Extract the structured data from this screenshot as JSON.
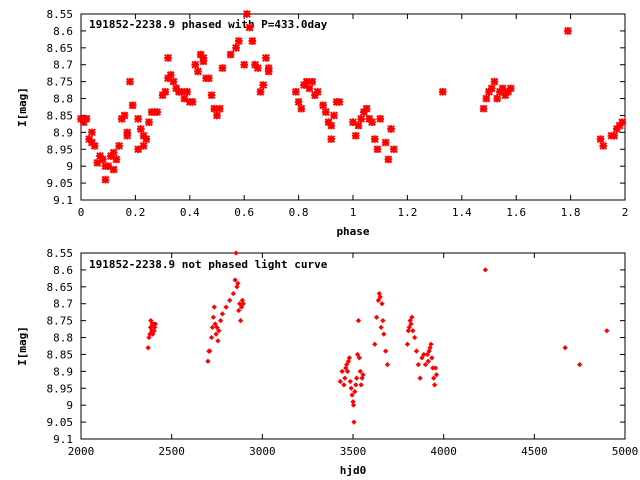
{
  "charts": [
    {
      "id": "phased",
      "title": "191852-2238.9 phased with P=433.0day",
      "xlabel": "phase",
      "ylabel": "I[mag]",
      "marker_color": "#ff0000",
      "marker_style": "cross",
      "xlim": [
        0,
        2
      ],
      "ylim": [
        8.55,
        9.1
      ],
      "y_inverted": true,
      "x_ticks": [
        0,
        0.2,
        0.4,
        0.6,
        0.8,
        1,
        1.2,
        1.4,
        1.6,
        1.8,
        2
      ],
      "x_tick_labels": [
        "0",
        "0.2",
        "0.4",
        "0.6",
        "0.8",
        "1",
        "1.2",
        "1.4",
        "1.6",
        "1.8",
        "2"
      ],
      "y_ticks": [
        8.55,
        8.6,
        8.65,
        8.7,
        8.75,
        8.8,
        8.85,
        8.9,
        8.95,
        9,
        9.05,
        9.1
      ],
      "y_tick_labels": [
        "8.55",
        "8.6",
        "8.65",
        "8.7",
        "8.75",
        "8.8",
        "8.85",
        "8.9",
        "8.95",
        "9",
        "9.05",
        "9.1"
      ]
    },
    {
      "id": "unphased",
      "title": "191852-2238.9 not phased light curve",
      "xlabel": "hjd0",
      "ylabel": "I[mag]",
      "marker_color": "#ff0000",
      "marker_style": "diamond",
      "xlim": [
        2000,
        5000
      ],
      "ylim": [
        8.55,
        9.1
      ],
      "y_inverted": true,
      "x_ticks": [
        2000,
        2500,
        3000,
        3500,
        4000,
        4500,
        5000
      ],
      "x_tick_labels": [
        "2000",
        "2500",
        "3000",
        "3500",
        "4000",
        "4500",
        "5000"
      ],
      "y_ticks": [
        8.55,
        8.6,
        8.65,
        8.7,
        8.75,
        8.8,
        8.85,
        8.9,
        8.95,
        9,
        9.05,
        9.1
      ],
      "y_tick_labels": [
        "8.55",
        "8.6",
        "8.65",
        "8.7",
        "8.75",
        "8.8",
        "8.85",
        "8.9",
        "8.95",
        "9",
        "9.05",
        "9.1"
      ]
    }
  ],
  "chart_data": [
    {
      "type": "scatter",
      "title": "191852-2238.9 phased with P=433.0day",
      "xlabel": "phase",
      "ylabel": "I[mag]",
      "xlim": [
        0,
        2
      ],
      "ylim": [
        9.1,
        8.55
      ],
      "grid": false,
      "points": [
        [
          0.0,
          8.86
        ],
        [
          0.01,
          8.87
        ],
        [
          0.02,
          8.86
        ],
        [
          0.03,
          8.92
        ],
        [
          0.04,
          8.93
        ],
        [
          0.04,
          8.9
        ],
        [
          0.05,
          8.94
        ],
        [
          0.06,
          8.99
        ],
        [
          0.07,
          8.97
        ],
        [
          0.08,
          8.98
        ],
        [
          0.09,
          9.0
        ],
        [
          0.09,
          9.04
        ],
        [
          0.1,
          9.0
        ],
        [
          0.11,
          8.97
        ],
        [
          0.12,
          9.01
        ],
        [
          0.12,
          8.96
        ],
        [
          0.13,
          8.98
        ],
        [
          0.14,
          8.94
        ],
        [
          0.15,
          8.86
        ],
        [
          0.16,
          8.85
        ],
        [
          0.17,
          8.9
        ],
        [
          0.17,
          8.91
        ],
        [
          0.18,
          8.75
        ],
        [
          0.19,
          8.82
        ],
        [
          0.21,
          8.95
        ],
        [
          0.21,
          8.86
        ],
        [
          0.22,
          8.89
        ],
        [
          0.23,
          8.91
        ],
        [
          0.23,
          8.94
        ],
        [
          0.24,
          8.92
        ],
        [
          0.25,
          8.87
        ],
        [
          0.26,
          8.84
        ],
        [
          0.27,
          8.84
        ],
        [
          0.28,
          8.84
        ],
        [
          0.3,
          8.79
        ],
        [
          0.31,
          8.78
        ],
        [
          0.32,
          8.74
        ],
        [
          0.32,
          8.68
        ],
        [
          0.33,
          8.73
        ],
        [
          0.34,
          8.75
        ],
        [
          0.35,
          8.77
        ],
        [
          0.36,
          8.78
        ],
        [
          0.37,
          8.78
        ],
        [
          0.38,
          8.8
        ],
        [
          0.39,
          8.78
        ],
        [
          0.4,
          8.81
        ],
        [
          0.41,
          8.81
        ],
        [
          0.42,
          8.7
        ],
        [
          0.43,
          8.72
        ],
        [
          0.44,
          8.67
        ],
        [
          0.45,
          8.69
        ],
        [
          0.45,
          8.68
        ],
        [
          0.46,
          8.74
        ],
        [
          0.47,
          8.74
        ],
        [
          0.48,
          8.79
        ],
        [
          0.49,
          8.83
        ],
        [
          0.5,
          8.85
        ],
        [
          0.51,
          8.83
        ],
        [
          0.52,
          8.71
        ],
        [
          0.55,
          8.67
        ],
        [
          0.57,
          8.65
        ],
        [
          0.58,
          8.63
        ],
        [
          0.6,
          8.7
        ],
        [
          0.61,
          8.55
        ],
        [
          0.62,
          8.59
        ],
        [
          0.63,
          8.63
        ],
        [
          0.64,
          8.7
        ],
        [
          0.65,
          8.71
        ],
        [
          0.66,
          8.78
        ],
        [
          0.67,
          8.76
        ],
        [
          0.68,
          8.68
        ],
        [
          0.69,
          8.71
        ],
        [
          0.69,
          8.72
        ],
        [
          0.79,
          8.78
        ],
        [
          0.8,
          8.81
        ],
        [
          0.81,
          8.83
        ],
        [
          0.82,
          8.76
        ],
        [
          0.83,
          8.75
        ],
        [
          0.84,
          8.77
        ],
        [
          0.85,
          8.75
        ],
        [
          0.86,
          8.79
        ],
        [
          0.87,
          8.78
        ],
        [
          0.89,
          8.82
        ],
        [
          0.9,
          8.84
        ],
        [
          0.91,
          8.87
        ],
        [
          0.92,
          8.88
        ],
        [
          0.93,
          8.85
        ],
        [
          0.94,
          8.81
        ],
        [
          0.95,
          8.81
        ],
        [
          0.92,
          8.92
        ],
        [
          1.0,
          8.87
        ],
        [
          1.01,
          8.91
        ],
        [
          1.02,
          8.88
        ],
        [
          1.03,
          8.86
        ],
        [
          1.04,
          8.84
        ],
        [
          1.05,
          8.83
        ],
        [
          1.06,
          8.86
        ],
        [
          1.07,
          8.87
        ],
        [
          1.08,
          8.92
        ],
        [
          1.09,
          8.95
        ],
        [
          1.1,
          8.86
        ],
        [
          1.12,
          8.93
        ],
        [
          1.13,
          8.98
        ],
        [
          1.14,
          8.89
        ],
        [
          1.15,
          8.95
        ],
        [
          1.33,
          8.78
        ],
        [
          1.48,
          8.83
        ],
        [
          1.49,
          8.8
        ],
        [
          1.5,
          8.78
        ],
        [
          1.51,
          8.77
        ],
        [
          1.52,
          8.75
        ],
        [
          1.53,
          8.8
        ],
        [
          1.54,
          8.78
        ],
        [
          1.55,
          8.77
        ],
        [
          1.56,
          8.79
        ],
        [
          1.57,
          8.78
        ],
        [
          1.58,
          8.77
        ],
        [
          1.79,
          8.6
        ],
        [
          1.91,
          8.92
        ],
        [
          1.92,
          8.94
        ],
        [
          1.95,
          8.91
        ],
        [
          1.96,
          8.91
        ],
        [
          1.97,
          8.89
        ],
        [
          1.98,
          8.88
        ],
        [
          1.99,
          8.87
        ]
      ]
    },
    {
      "type": "scatter",
      "title": "191852-2238.9 not phased light curve",
      "xlabel": "hjd0",
      "ylabel": "I[mag]",
      "xlim": [
        2000,
        5000
      ],
      "ylim": [
        9.1,
        8.55
      ],
      "grid": false,
      "points": [
        [
          2370,
          8.83
        ],
        [
          2375,
          8.8
        ],
        [
          2380,
          8.79
        ],
        [
          2383,
          8.77
        ],
        [
          2385,
          8.75
        ],
        [
          2388,
          8.77
        ],
        [
          2390,
          8.78
        ],
        [
          2393,
          8.76
        ],
        [
          2396,
          8.79
        ],
        [
          2400,
          8.76
        ],
        [
          2403,
          8.78
        ],
        [
          2406,
          8.77
        ],
        [
          2410,
          8.76
        ],
        [
          2700,
          8.87
        ],
        [
          2705,
          8.84
        ],
        [
          2710,
          8.84
        ],
        [
          2720,
          8.8
        ],
        [
          2725,
          8.77
        ],
        [
          2730,
          8.74
        ],
        [
          2735,
          8.71
        ],
        [
          2740,
          8.76
        ],
        [
          2745,
          8.79
        ],
        [
          2750,
          8.77
        ],
        [
          2755,
          8.81
        ],
        [
          2760,
          8.78
        ],
        [
          2770,
          8.75
        ],
        [
          2780,
          8.73
        ],
        [
          2800,
          8.71
        ],
        [
          2820,
          8.69
        ],
        [
          2840,
          8.67
        ],
        [
          2850,
          8.63
        ],
        [
          2855,
          8.55
        ],
        [
          2860,
          8.65
        ],
        [
          2865,
          8.64
        ],
        [
          2870,
          8.72
        ],
        [
          2875,
          8.7
        ],
        [
          2880,
          8.75
        ],
        [
          2885,
          8.71
        ],
        [
          2890,
          8.69
        ],
        [
          2895,
          8.7
        ],
        [
          3430,
          8.93
        ],
        [
          3440,
          8.9
        ],
        [
          3450,
          8.94
        ],
        [
          3455,
          8.92
        ],
        [
          3460,
          8.89
        ],
        [
          3465,
          8.88
        ],
        [
          3470,
          8.9
        ],
        [
          3475,
          8.87
        ],
        [
          3480,
          8.86
        ],
        [
          3485,
          8.93
        ],
        [
          3490,
          8.95
        ],
        [
          3495,
          8.97
        ],
        [
          3500,
          8.99
        ],
        [
          3503,
          9.0
        ],
        [
          3505,
          9.05
        ],
        [
          3510,
          8.96
        ],
        [
          3515,
          8.94
        ],
        [
          3520,
          8.92
        ],
        [
          3525,
          8.85
        ],
        [
          3530,
          8.75
        ],
        [
          3535,
          8.86
        ],
        [
          3540,
          8.9
        ],
        [
          3545,
          8.94
        ],
        [
          3550,
          8.92
        ],
        [
          3555,
          8.91
        ],
        [
          3620,
          8.82
        ],
        [
          3630,
          8.74
        ],
        [
          3640,
          8.69
        ],
        [
          3645,
          8.67
        ],
        [
          3650,
          8.68
        ],
        [
          3655,
          8.77
        ],
        [
          3660,
          8.7
        ],
        [
          3665,
          8.75
        ],
        [
          3670,
          8.79
        ],
        [
          3680,
          8.84
        ],
        [
          3690,
          8.88
        ],
        [
          3800,
          8.82
        ],
        [
          3805,
          8.78
        ],
        [
          3810,
          8.77
        ],
        [
          3815,
          8.75
        ],
        [
          3820,
          8.76
        ],
        [
          3825,
          8.74
        ],
        [
          3830,
          8.78
        ],
        [
          3840,
          8.8
        ],
        [
          3850,
          8.84
        ],
        [
          3860,
          8.88
        ],
        [
          3870,
          8.92
        ],
        [
          3880,
          8.86
        ],
        [
          3890,
          8.85
        ],
        [
          3900,
          8.88
        ],
        [
          3910,
          8.85
        ],
        [
          3915,
          8.87
        ],
        [
          3920,
          8.84
        ],
        [
          3925,
          8.83
        ],
        [
          3930,
          8.82
        ],
        [
          3935,
          8.86
        ],
        [
          3940,
          8.89
        ],
        [
          3945,
          8.92
        ],
        [
          3950,
          8.94
        ],
        [
          3955,
          8.89
        ],
        [
          3960,
          8.91
        ],
        [
          4230,
          8.6
        ],
        [
          4670,
          8.83
        ],
        [
          4750,
          8.88
        ],
        [
          4900,
          8.78
        ]
      ]
    }
  ]
}
